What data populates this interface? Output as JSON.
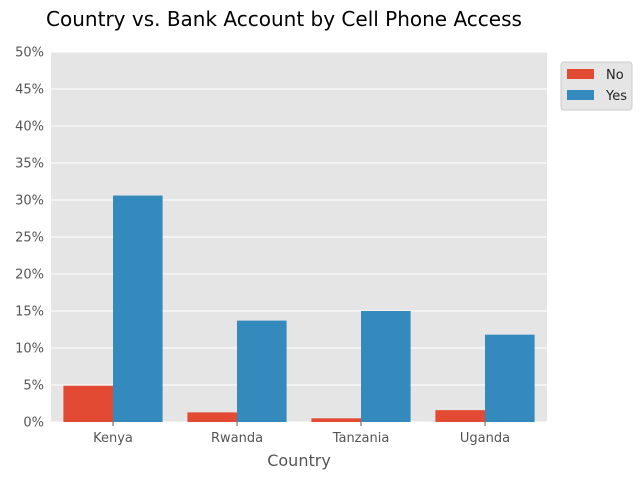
{
  "chart_data": {
    "type": "bar",
    "title": "Country vs. Bank Account by Cell Phone Access",
    "xlabel": "Country",
    "ylabel": "",
    "categories": [
      "Kenya",
      "Rwanda",
      "Tanzania",
      "Uganda"
    ],
    "series": [
      {
        "name": "No",
        "color": "#E24A33",
        "values": [
          4.9,
          1.3,
          0.5,
          1.6
        ]
      },
      {
        "name": "Yes",
        "color": "#348ABD",
        "values": [
          30.6,
          13.7,
          15.0,
          11.8
        ]
      }
    ],
    "ylim": [
      0,
      50
    ],
    "yticks": [
      0,
      5,
      10,
      15,
      20,
      25,
      30,
      35,
      40,
      45,
      50
    ],
    "ytick_labels": [
      "0%",
      "5%",
      "10%",
      "15%",
      "20%",
      "25%",
      "30%",
      "35%",
      "40%",
      "45%",
      "50%"
    ],
    "grid": true,
    "legend_position": "top-right outside"
  }
}
